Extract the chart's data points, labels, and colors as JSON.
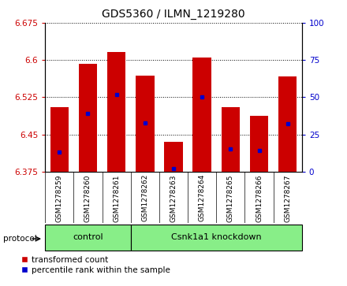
{
  "title": "GDS5360 / ILMN_1219280",
  "samples": [
    "GSM1278259",
    "GSM1278260",
    "GSM1278261",
    "GSM1278262",
    "GSM1278263",
    "GSM1278264",
    "GSM1278265",
    "GSM1278266",
    "GSM1278267"
  ],
  "bar_values": [
    6.505,
    6.593,
    6.617,
    6.568,
    6.435,
    6.605,
    6.505,
    6.487,
    6.567
  ],
  "bar_bottom": 6.375,
  "percentile_values": [
    13,
    39,
    52,
    33,
    2,
    50,
    15,
    14,
    32
  ],
  "ylim": [
    6.375,
    6.675
  ],
  "y_ticks": [
    6.375,
    6.45,
    6.525,
    6.6,
    6.675
  ],
  "y2_ticks": [
    0,
    25,
    50,
    75,
    100
  ],
  "bar_color": "#cc0000",
  "percentile_color": "#0000cc",
  "bar_width": 0.65,
  "grid_color": "#000000",
  "control_samples": 3,
  "group_labels": [
    "control",
    "Csnk1a1 knockdown"
  ],
  "group_color": "#88ee88",
  "tick_label_color_left": "#cc0000",
  "tick_label_color_right": "#0000cc",
  "axis_bg": "#d0d0d0",
  "plot_bg": "#ffffff",
  "legend_items": [
    "transformed count",
    "percentile rank within the sample"
  ],
  "legend_colors": [
    "#cc0000",
    "#0000cc"
  ]
}
